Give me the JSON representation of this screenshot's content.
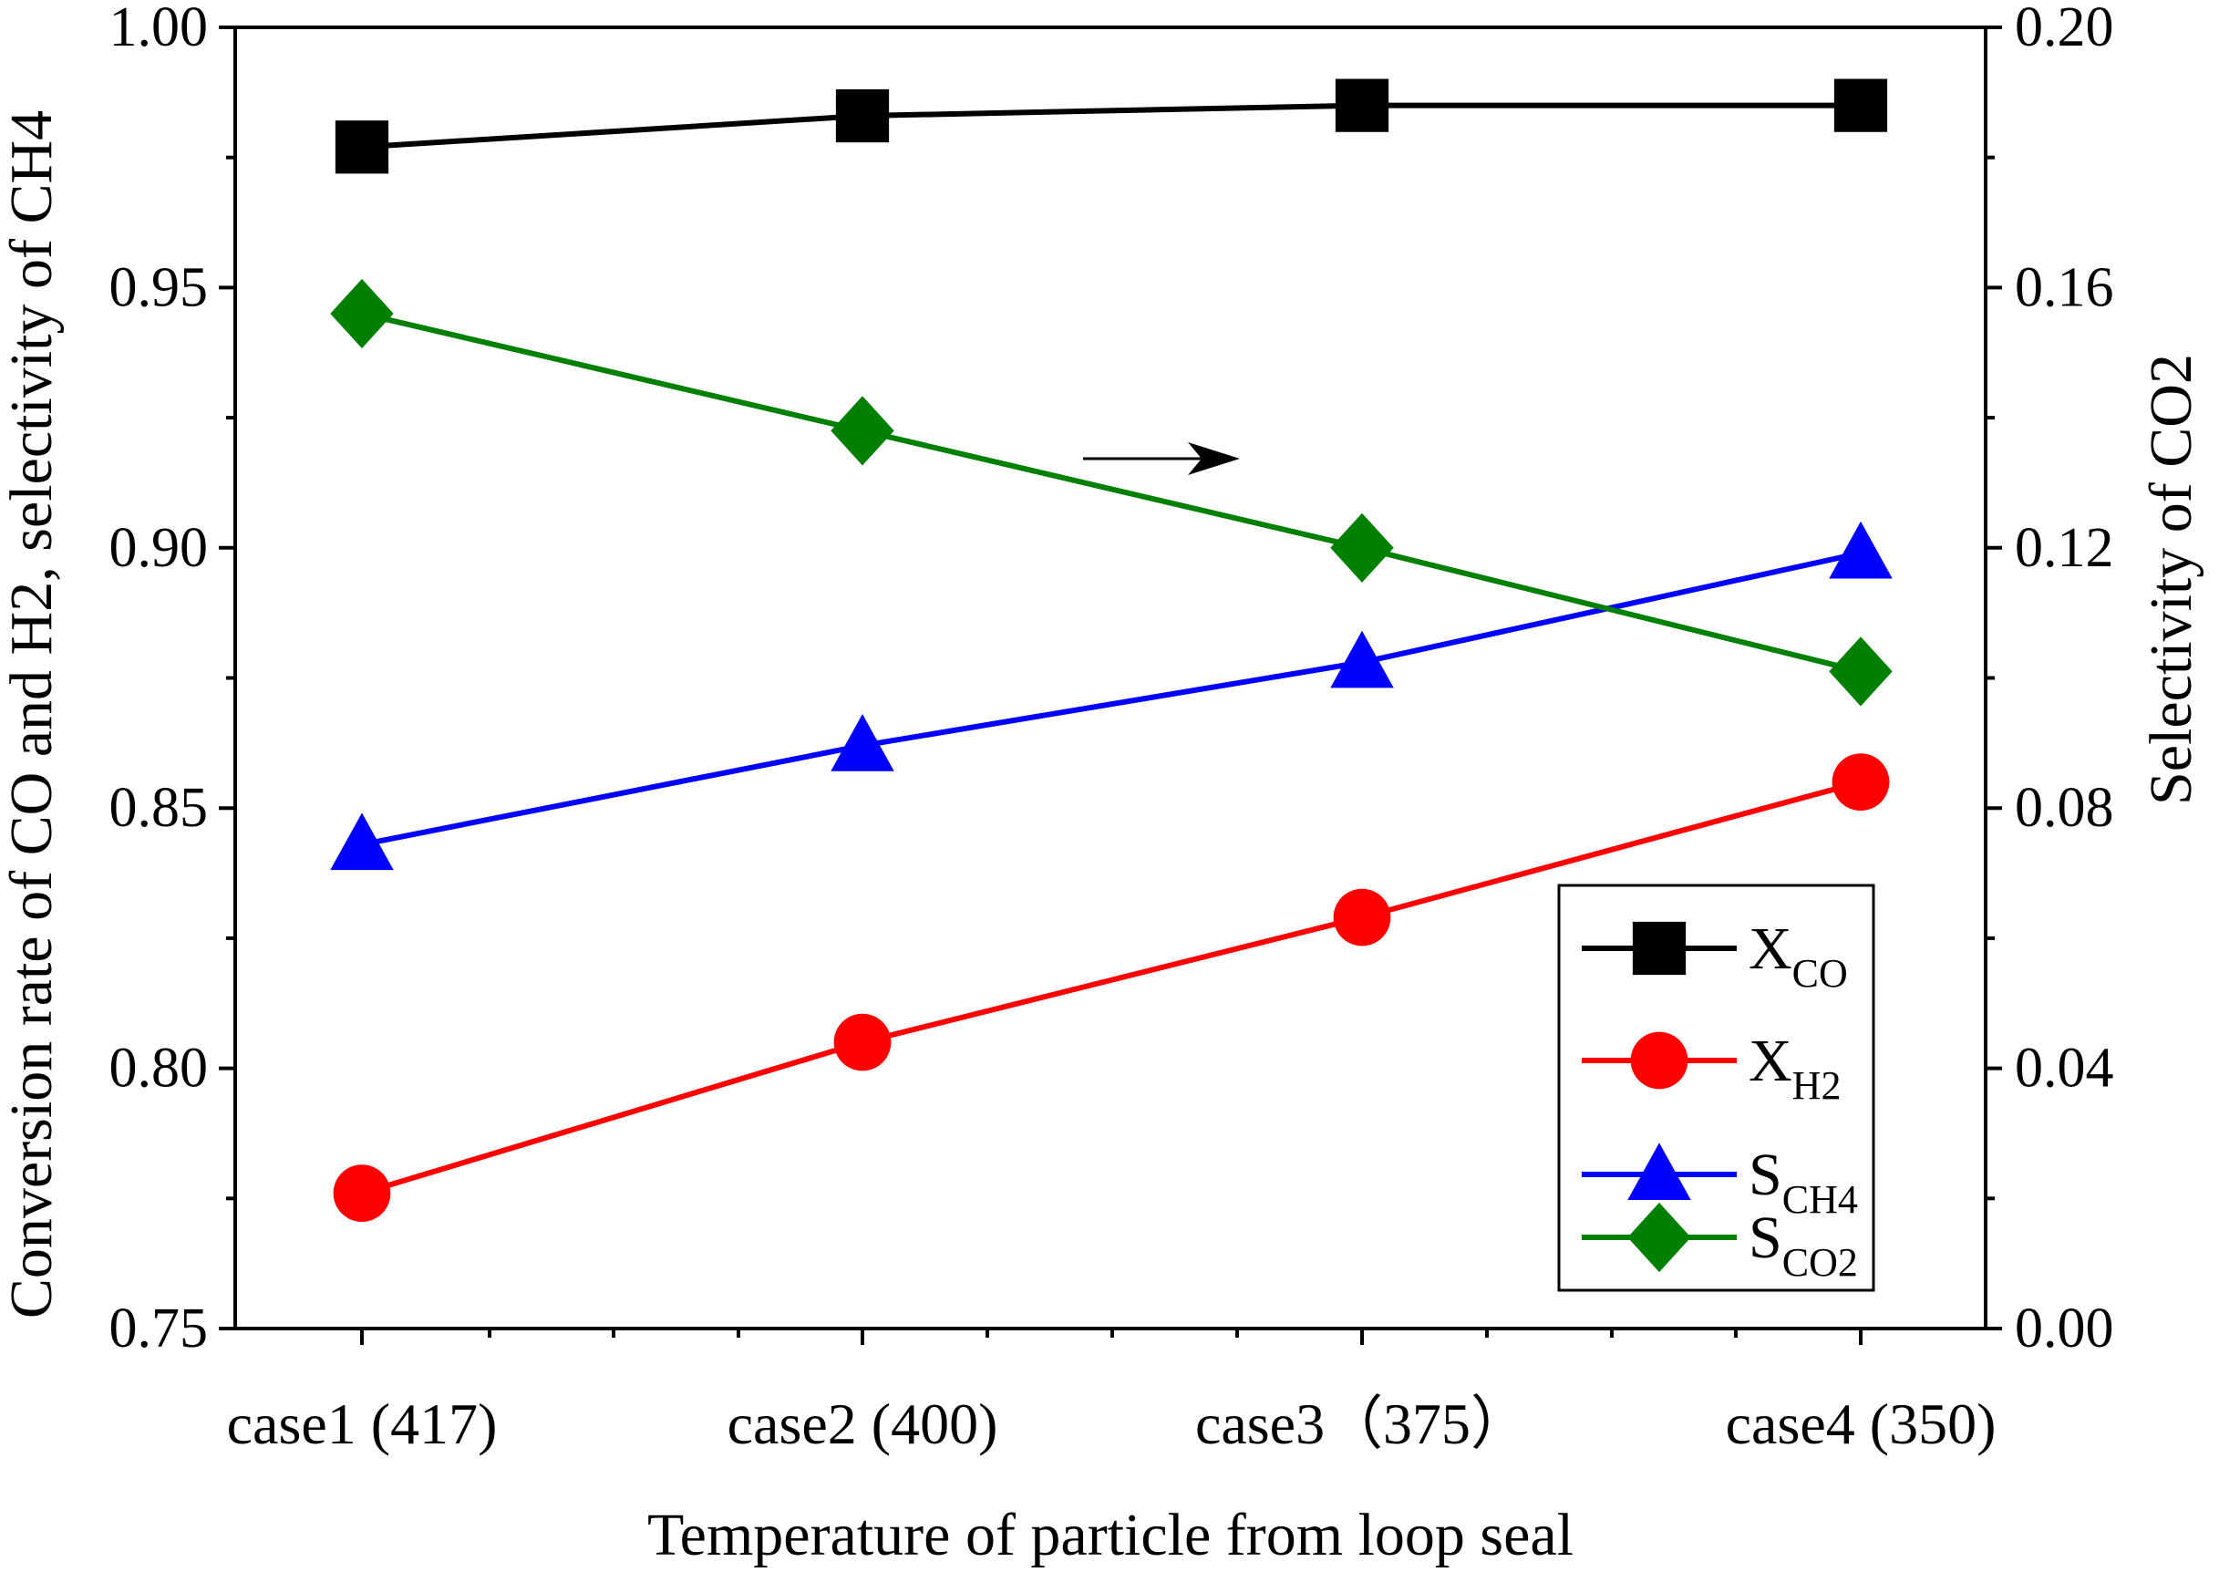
{
  "chart_data": {
    "type": "line",
    "categories": [
      "case1 (417)",
      "case2 (400)",
      "case3（375）",
      "case4 (350)"
    ],
    "xlabel": "Temperature of particle from loop seal",
    "ylabel": "Conversion rate of CO and H2, selectivity of CH4",
    "ylabel_right": "Selectivity of CO2",
    "ylim": [
      0.75,
      1.0
    ],
    "ylim_right": [
      0.0,
      0.2
    ],
    "yticks": [
      "0.75",
      "0.80",
      "0.85",
      "0.90",
      "0.95",
      "1.00"
    ],
    "yticks_right": [
      "0.00",
      "0.04",
      "0.08",
      "0.12",
      "0.16",
      "0.20"
    ],
    "grid": false,
    "legend_position": "bottom-right",
    "annotation": "arrow pointing right (S_CO2 uses right axis)",
    "series": [
      {
        "name": "X_CO",
        "label_main": "X",
        "label_sub": "CO",
        "axis": "left",
        "color": "#000000",
        "marker": "square",
        "values": [
          0.977,
          0.983,
          0.985,
          0.985
        ]
      },
      {
        "name": "X_H2",
        "label_main": "X",
        "label_sub": "H2",
        "axis": "left",
        "color": "#ff0000",
        "marker": "circle",
        "values": [
          0.776,
          0.805,
          0.829,
          0.855
        ]
      },
      {
        "name": "S_CH4",
        "label_main": "S",
        "label_sub": "CH4",
        "axis": "left",
        "color": "#0000ff",
        "marker": "triangle",
        "values": [
          0.843,
          0.862,
          0.878,
          0.899
        ]
      },
      {
        "name": "S_CO2",
        "label_main": "S",
        "label_sub": "CO2",
        "axis": "right",
        "color": "#008000",
        "marker": "diamond",
        "values": [
          0.156,
          0.138,
          0.12,
          0.101
        ]
      }
    ]
  }
}
